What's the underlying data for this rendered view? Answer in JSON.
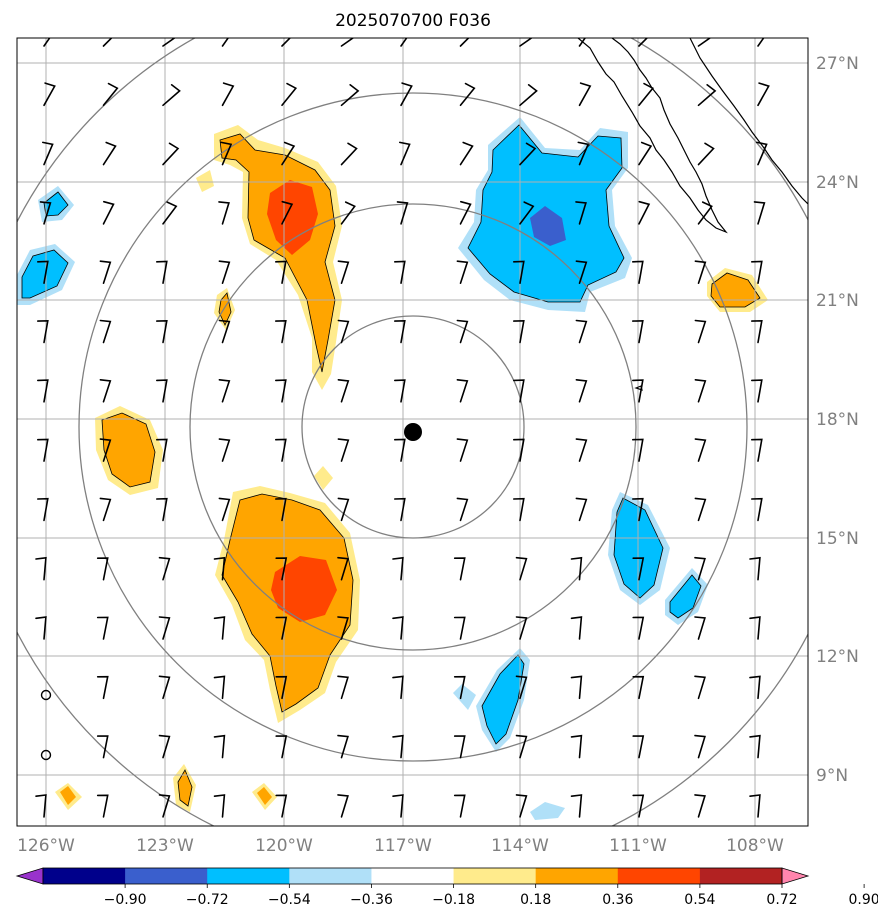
{
  "title": "2025070700 F036",
  "lon_labels": [
    "126°W",
    "123°W",
    "120°W",
    "117°W",
    "114°W",
    "111°W",
    "108°W"
  ],
  "lat_labels": [
    "27°N",
    "24°N",
    "21°N",
    "18°N",
    "15°N",
    "12°N",
    "9°N"
  ],
  "colorbar": {
    "ticks": [
      "−0.90",
      "−0.72",
      "−0.54",
      "−0.36",
      "−0.18",
      "0.18",
      "0.36",
      "0.54",
      "0.72",
      "0.90"
    ],
    "colors": [
      "#9933cc",
      "#00008b",
      "#3a5fcd",
      "#00bfff",
      "#b0e0f8",
      "#ffffff",
      "#ffeb8c",
      "#ffa500",
      "#ff4500",
      "#b22222",
      "#ff85ad"
    ]
  },
  "center_marker": {
    "lon": -116.8,
    "lat": 17.6
  },
  "field_colors": {
    "light_blue": "#b0e0f8",
    "blue": "#00bfff",
    "dark_blue": "#3a5fcd",
    "light_orange": "#ffeb8c",
    "orange": "#ffa500",
    "red_orange": "#ff4500"
  }
}
